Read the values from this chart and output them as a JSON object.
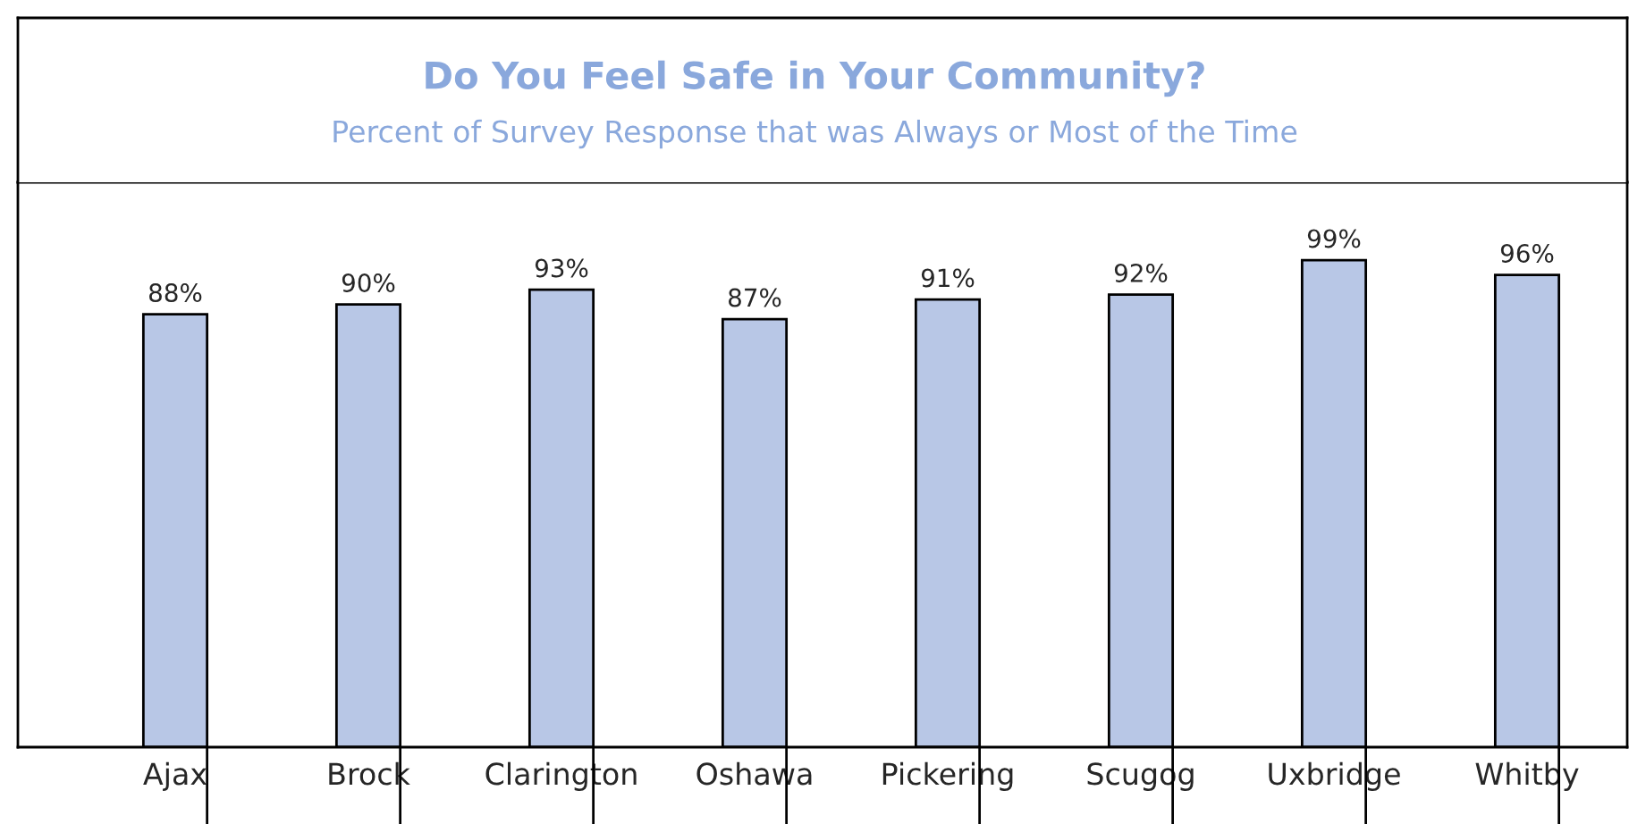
{
  "chart_data": {
    "type": "bar",
    "title": "Do You Feel Safe in Your Community?",
    "subtitle": "Percent of Survey Response that was Always or Most of the Time",
    "categories": [
      "Ajax",
      "Brock",
      "Clarington",
      "Oshawa",
      "Pickering",
      "Scugog",
      "Uxbridge",
      "Whitby"
    ],
    "values": [
      88,
      90,
      93,
      87,
      91,
      92,
      99,
      96
    ],
    "value_labels": [
      "88%",
      "90%",
      "93%",
      "87%",
      "91%",
      "92%",
      "99%",
      "96%"
    ],
    "color": "#b8c7e6"
  }
}
